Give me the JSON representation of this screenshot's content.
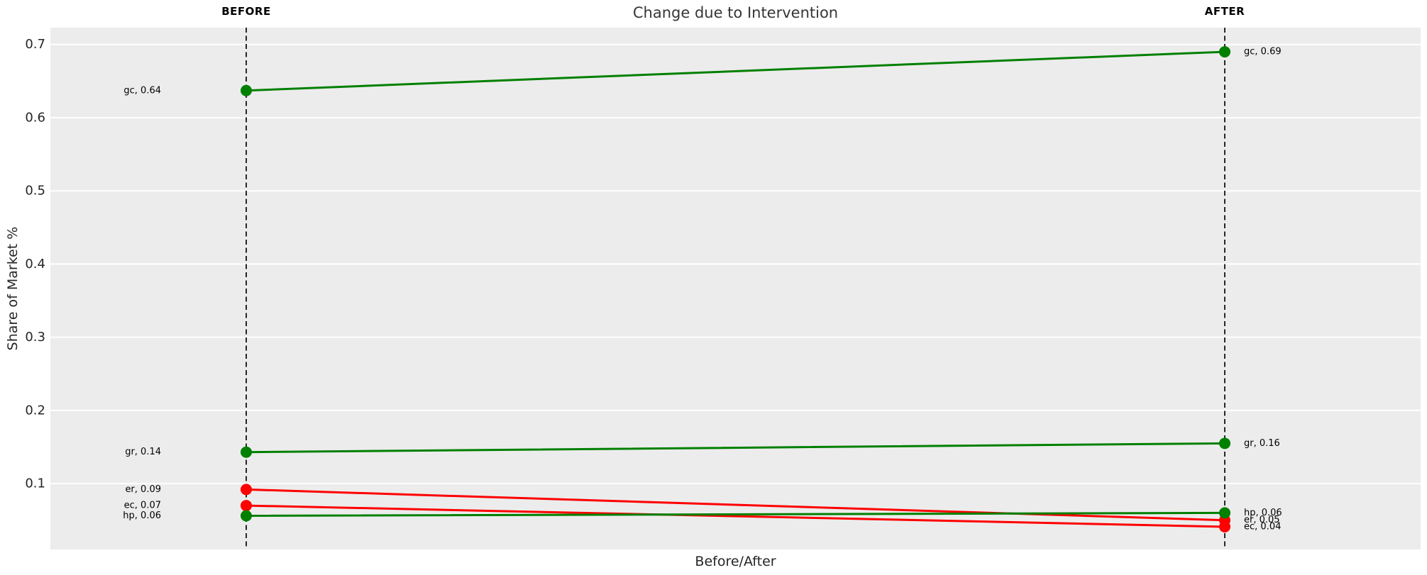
{
  "title": "Change due to Intervention",
  "xlabel": "Before/After",
  "ylabel": "Share of Market %",
  "headers": {
    "before": "BEFORE",
    "after": "AFTER"
  },
  "colors": {
    "increase": "#008000",
    "decrease": "#ff0000",
    "plot_background": "#ececec",
    "gridline": "#ffffff",
    "guide_line": "#111111",
    "tick_text": "#262626",
    "title_text": "#363636"
  },
  "chart_data": {
    "type": "line",
    "subtype": "slopegraph",
    "title": "Change due to Intervention",
    "xlabel": "Before/After",
    "ylabel": "Share of Market %",
    "categories": [
      "BEFORE",
      "AFTER"
    ],
    "yticks": [
      0.1,
      0.2,
      0.3,
      0.4,
      0.5,
      0.6,
      0.7
    ],
    "ylim": [
      0.01,
      0.723
    ],
    "grid": true,
    "legend": false,
    "series": [
      {
        "name": "gc",
        "values": [
          0.637,
          0.69
        ],
        "point_labels": [
          "gc, 0.64",
          "gc, 0.69"
        ],
        "color": "#008000",
        "trend": "increase"
      },
      {
        "name": "gr",
        "values": [
          0.143,
          0.155
        ],
        "point_labels": [
          "gr, 0.14",
          "gr, 0.16"
        ],
        "color": "#008000",
        "trend": "increase"
      },
      {
        "name": "er",
        "values": [
          0.092,
          0.05
        ],
        "point_labels": [
          "er, 0.09",
          "er, 0.05"
        ],
        "color": "#ff0000",
        "trend": "decrease"
      },
      {
        "name": "ec",
        "values": [
          0.07,
          0.041
        ],
        "point_labels": [
          "ec, 0.07",
          "ec, 0.04"
        ],
        "color": "#ff0000",
        "trend": "decrease"
      },
      {
        "name": "hp",
        "values": [
          0.056,
          0.06
        ],
        "point_labels": [
          "hp, 0.06",
          "hp, 0.06"
        ],
        "color": "#008000",
        "trend": "increase"
      }
    ]
  }
}
